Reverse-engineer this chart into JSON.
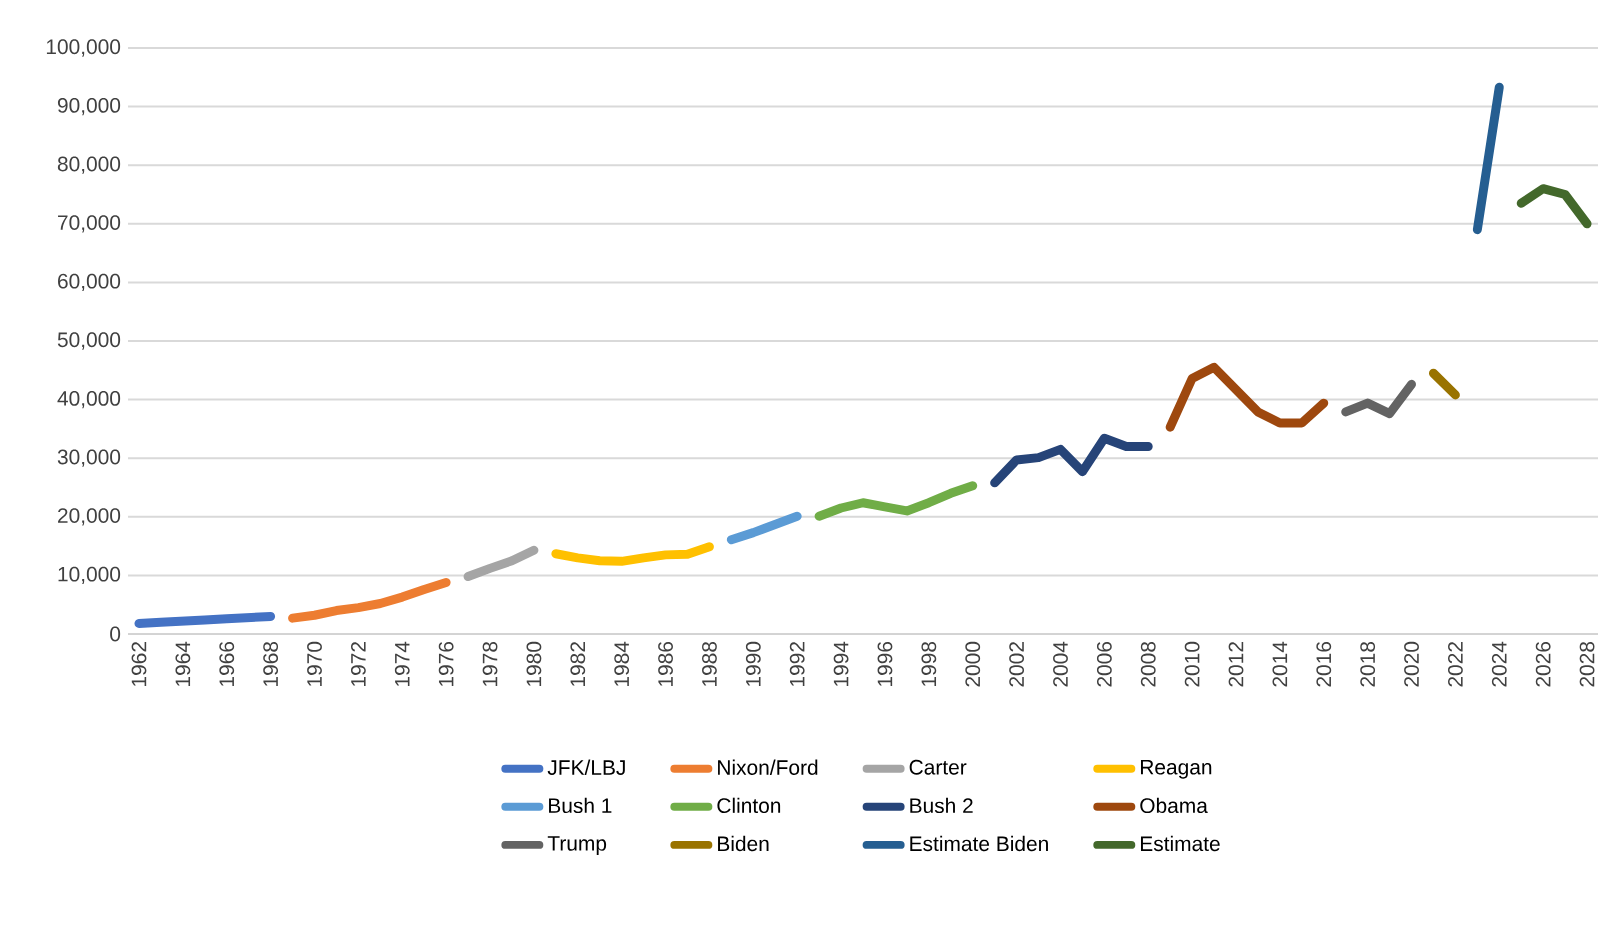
{
  "chart_data": {
    "type": "line",
    "xlim": [
      1961.5,
      2028.5
    ],
    "xticks": [
      1962,
      1964,
      1966,
      1968,
      1970,
      1972,
      1974,
      1976,
      1978,
      1980,
      1982,
      1984,
      1986,
      1988,
      1990,
      1992,
      1994,
      1996,
      1998,
      2000,
      2002,
      2004,
      2006,
      2008,
      2010,
      2012,
      2014,
      2016,
      2018,
      2020,
      2022,
      2024,
      2026,
      2028
    ],
    "ylim": [
      0,
      100000
    ],
    "yticks": [
      0,
      {
        "value": 10000,
        "label": "10,000"
      },
      {
        "value": 20000,
        "label": "20,000"
      },
      {
        "value": 30000,
        "label": "30,000"
      },
      {
        "value": 40000,
        "label": "40,000"
      },
      {
        "value": 50000,
        "label": "50,000"
      },
      {
        "value": 60000,
        "label": "60,000"
      },
      {
        "value": 70000,
        "label": "70,000"
      },
      {
        "value": 80000,
        "label": "80,000"
      },
      {
        "value": 90000,
        "label": "90,000"
      },
      {
        "value": 100000,
        "label": "100,000"
      }
    ],
    "grid": "y",
    "legend": "bottom",
    "marker": "none",
    "line_style": "solid",
    "series": [
      {
        "name": "JFK/LBJ",
        "color": "#4472c4",
        "x": [
          1962,
          1963,
          1964,
          1965,
          1966,
          1967,
          1968
        ],
        "values": [
          1800,
          2000,
          2200,
          2400,
          2600,
          2800,
          3000
        ]
      },
      {
        "name": "Nixon/Ford",
        "color": "#ed7d31",
        "x": [
          1969,
          1970,
          1971,
          1972,
          1973,
          1974,
          1975,
          1976
        ],
        "values": [
          2700,
          3200,
          4000,
          4500,
          5200,
          6300,
          7600,
          8800
        ]
      },
      {
        "name": "Carter",
        "color": "#a5a5a5",
        "x": [
          1977,
          1978,
          1979,
          1980
        ],
        "values": [
          9800,
          11200,
          12500,
          14300
        ]
      },
      {
        "name": "Reagan",
        "color": "#ffc000",
        "x": [
          1981,
          1982,
          1983,
          1984,
          1985,
          1986,
          1987,
          1988
        ],
        "values": [
          13700,
          13000,
          12500,
          12400,
          13000,
          13500,
          13600,
          14900
        ]
      },
      {
        "name": "Bush 1",
        "color": "#5b9bd5",
        "x": [
          1989,
          1990,
          1991,
          1992
        ],
        "values": [
          16100,
          17300,
          18700,
          20100
        ]
      },
      {
        "name": "Clinton",
        "color": "#70ad47",
        "x": [
          1993,
          1994,
          1995,
          1996,
          1997,
          1998,
          1999,
          2000
        ],
        "values": [
          20100,
          21500,
          22400,
          21700,
          21000,
          22400,
          24000,
          25300
        ]
      },
      {
        "name": "Bush 2",
        "color": "#264478",
        "x": [
          2001,
          2002,
          2003,
          2004,
          2005,
          2006,
          2007,
          2008
        ],
        "values": [
          25800,
          29700,
          30100,
          31500,
          27700,
          33400,
          32000,
          32000
        ]
      },
      {
        "name": "Obama",
        "color": "#9e480e",
        "x": [
          2009,
          2010,
          2011,
          2012,
          2013,
          2014,
          2015,
          2016
        ],
        "values": [
          35300,
          43600,
          45500,
          41700,
          37900,
          36000,
          36000,
          39400
        ]
      },
      {
        "name": "Trump",
        "color": "#636363",
        "x": [
          2017,
          2018,
          2019,
          2020
        ],
        "values": [
          37900,
          39400,
          37600,
          42600
        ]
      },
      {
        "name": "Biden",
        "color": "#997300",
        "x": [
          2021,
          2022
        ],
        "values": [
          44500,
          40800
        ]
      },
      {
        "name": "Estimate Biden",
        "color": "#255e91",
        "x": [
          2023,
          2024
        ],
        "values": [
          69000,
          93300
        ]
      },
      {
        "name": "Estimate",
        "color": "#43682b",
        "x": [
          2025,
          2026,
          2027,
          2028
        ],
        "values": [
          73500,
          76000,
          75000,
          70000
        ]
      }
    ]
  }
}
